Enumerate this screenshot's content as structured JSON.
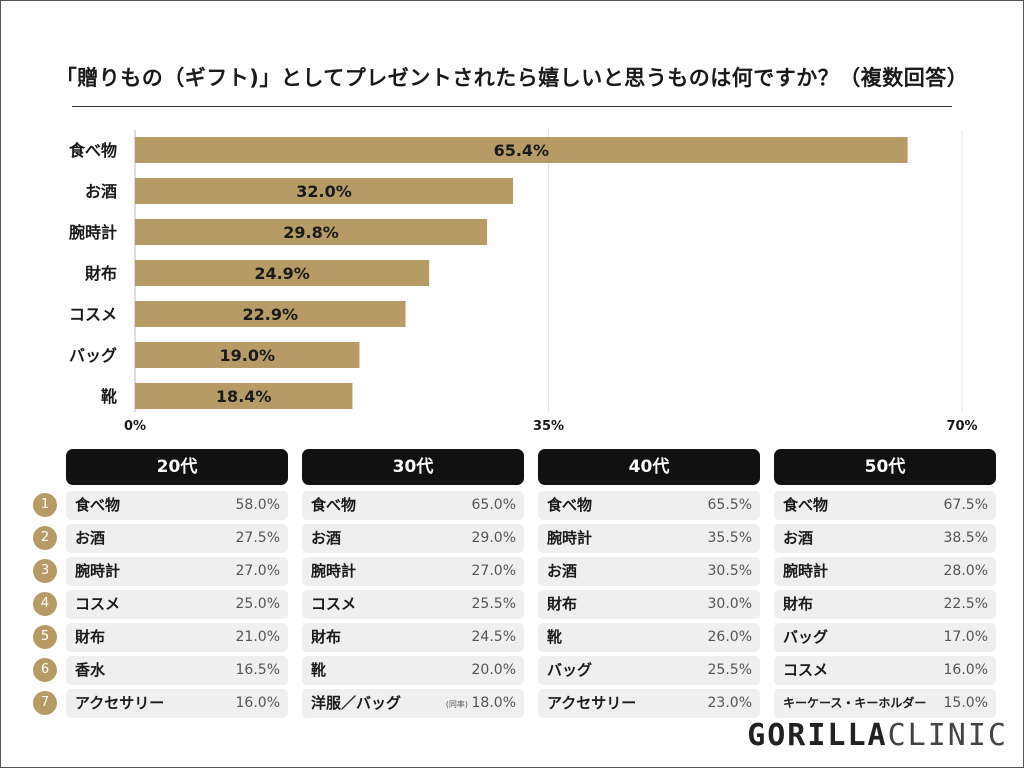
{
  "title": "「贈りもの（ギフト)」としてプレゼントされたら嬉しいと思うものは何ですか？（複数回答）",
  "colors": {
    "bar": "#b69b67",
    "header": "#111111",
    "row_bg": "#efefef",
    "rank": "#b69b67"
  },
  "chart_data": {
    "type": "bar",
    "orientation": "horizontal",
    "categories": [
      "食べ物",
      "お酒",
      "腕時計",
      "財布",
      "コスメ",
      "バッグ",
      "靴"
    ],
    "values": [
      65.4,
      32.0,
      29.8,
      24.9,
      22.9,
      19.0,
      18.4
    ],
    "value_labels": [
      "65.4%",
      "32.0%",
      "29.8%",
      "24.9%",
      "22.9%",
      "19.0%",
      "18.4%"
    ],
    "xlim": [
      0,
      70
    ],
    "ticks": [
      0,
      35,
      70
    ],
    "tick_labels": [
      "0%",
      "35%",
      "70%"
    ],
    "grid": true
  },
  "ranks": [
    "1",
    "2",
    "3",
    "4",
    "5",
    "6",
    "7"
  ],
  "age_panels": [
    {
      "header": "20代",
      "rows": [
        {
          "label": "食べ物",
          "value": "58.0%"
        },
        {
          "label": "お酒",
          "value": "27.5%"
        },
        {
          "label": "腕時計",
          "value": "27.0%"
        },
        {
          "label": "コスメ",
          "value": "25.0%"
        },
        {
          "label": "財布",
          "value": "21.0%"
        },
        {
          "label": "香水",
          "value": "16.5%"
        },
        {
          "label": "アクセサリー",
          "value": "16.0%"
        }
      ]
    },
    {
      "header": "30代",
      "rows": [
        {
          "label": "食べ物",
          "value": "65.0%"
        },
        {
          "label": "お酒",
          "value": "29.0%"
        },
        {
          "label": "腕時計",
          "value": "27.0%"
        },
        {
          "label": "コスメ",
          "value": "25.5%"
        },
        {
          "label": "財布",
          "value": "24.5%"
        },
        {
          "label": "靴",
          "value": "20.0%"
        },
        {
          "label": "洋服／バッグ",
          "value": "18.0%",
          "note": "(同率)"
        }
      ]
    },
    {
      "header": "40代",
      "rows": [
        {
          "label": "食べ物",
          "value": "65.5%"
        },
        {
          "label": "腕時計",
          "value": "35.5%"
        },
        {
          "label": "お酒",
          "value": "30.5%"
        },
        {
          "label": "財布",
          "value": "30.0%"
        },
        {
          "label": "靴",
          "value": "26.0%"
        },
        {
          "label": "バッグ",
          "value": "25.5%"
        },
        {
          "label": "アクセサリー",
          "value": "23.0%"
        }
      ]
    },
    {
      "header": "50代",
      "rows": [
        {
          "label": "食べ物",
          "value": "67.5%"
        },
        {
          "label": "お酒",
          "value": "38.5%"
        },
        {
          "label": "腕時計",
          "value": "28.0%"
        },
        {
          "label": "財布",
          "value": "22.5%"
        },
        {
          "label": "バッグ",
          "value": "17.0%"
        },
        {
          "label": "コスメ",
          "value": "16.0%"
        },
        {
          "label": "キーケース・キーホルダー",
          "value": "15.0%"
        }
      ]
    }
  ],
  "brand": {
    "part1": "GORILLA",
    "part2": "CLINIC"
  }
}
